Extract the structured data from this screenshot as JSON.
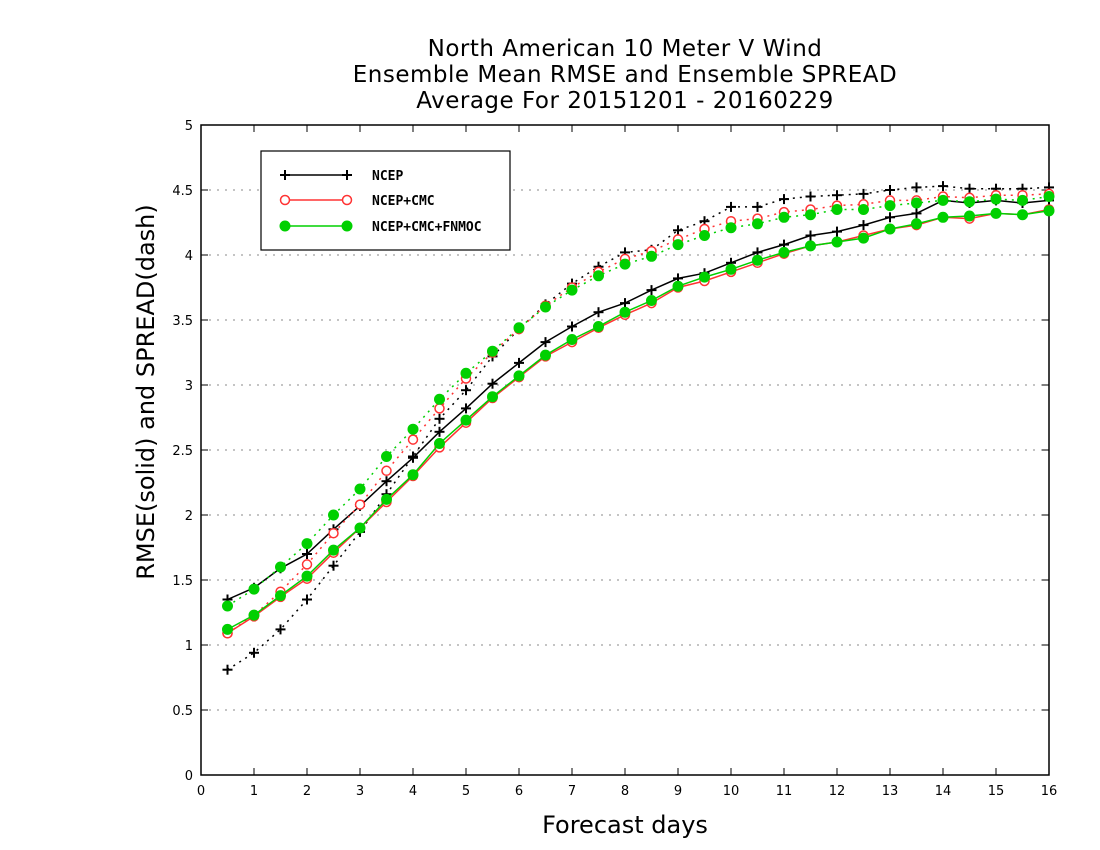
{
  "chart_data": {
    "type": "line",
    "title": [
      "North American 10 Meter V Wind",
      "Ensemble Mean RMSE and Ensemble SPREAD",
      "Average For 20151201 - 20160229"
    ],
    "xlabel": "Forecast days",
    "ylabel": "RMSE(solid) and SPREAD(dash)",
    "xlim": [
      0,
      16
    ],
    "ylim": [
      0,
      5
    ],
    "xticks": [
      "0",
      "1",
      "2",
      "3",
      "4",
      "5",
      "6",
      "7",
      "8",
      "9",
      "10",
      "11",
      "12",
      "13",
      "14",
      "15",
      "16"
    ],
    "yticks": [
      "0",
      "0.5",
      "1",
      "1.5",
      "2",
      "2.5",
      "3",
      "3.5",
      "4",
      "4.5",
      "5"
    ],
    "grid": "horizontal dotted",
    "legend_position": "top-left",
    "x": [
      0.5,
      1.0,
      1.5,
      2.0,
      2.5,
      3.0,
      3.5,
      4.0,
      4.5,
      5.0,
      5.5,
      6.0,
      6.5,
      7.0,
      7.5,
      8.0,
      8.5,
      9.0,
      9.5,
      10.0,
      10.5,
      11.0,
      11.5,
      12.0,
      12.5,
      13.0,
      13.5,
      14.0,
      14.5,
      15.0,
      15.5,
      16.0
    ],
    "series": [
      {
        "name": "NCEP",
        "color": "#000000",
        "marker": "plus",
        "rmse": [
          1.35,
          1.44,
          1.59,
          1.7,
          1.89,
          2.07,
          2.26,
          2.44,
          2.64,
          2.82,
          3.01,
          3.17,
          3.33,
          3.45,
          3.56,
          3.63,
          3.73,
          3.82,
          3.86,
          3.94,
          4.02,
          4.08,
          4.15,
          4.18,
          4.23,
          4.29,
          4.32,
          4.42,
          4.4,
          4.42,
          4.4,
          4.42
        ],
        "spread": [
          0.81,
          0.94,
          1.12,
          1.35,
          1.61,
          1.87,
          2.16,
          2.45,
          2.74,
          2.96,
          3.22,
          3.43,
          3.62,
          3.78,
          3.91,
          4.02,
          4.04,
          4.19,
          4.26,
          4.37,
          4.37,
          4.43,
          4.45,
          4.46,
          4.47,
          4.5,
          4.52,
          4.53,
          4.51,
          4.51,
          4.51,
          4.52
        ]
      },
      {
        "name": "NCEP+CMC",
        "color": "#ff3333",
        "marker": "open-circle",
        "rmse": [
          1.09,
          1.22,
          1.37,
          1.51,
          1.71,
          1.9,
          2.1,
          2.3,
          2.52,
          2.71,
          2.9,
          3.06,
          3.22,
          3.33,
          3.44,
          3.54,
          3.63,
          3.75,
          3.8,
          3.87,
          3.94,
          4.01,
          4.07,
          4.1,
          4.15,
          4.2,
          4.23,
          4.29,
          4.28,
          4.32,
          4.31,
          4.35
        ],
        "spread": [
          1.09,
          1.23,
          1.41,
          1.62,
          1.86,
          2.08,
          2.34,
          2.58,
          2.82,
          3.05,
          3.25,
          3.43,
          3.61,
          3.75,
          3.87,
          3.97,
          4.03,
          4.12,
          4.2,
          4.26,
          4.28,
          4.33,
          4.35,
          4.38,
          4.39,
          4.42,
          4.42,
          4.45,
          4.44,
          4.46,
          4.46,
          4.47
        ]
      },
      {
        "name": "NCEP+CMC+FNMOC",
        "color": "#00d000",
        "marker": "filled-circle",
        "rmse": [
          1.12,
          1.23,
          1.38,
          1.53,
          1.73,
          1.9,
          2.12,
          2.31,
          2.55,
          2.73,
          2.91,
          3.07,
          3.23,
          3.35,
          3.45,
          3.56,
          3.65,
          3.76,
          3.83,
          3.89,
          3.96,
          4.02,
          4.07,
          4.1,
          4.13,
          4.2,
          4.24,
          4.29,
          4.3,
          4.32,
          4.31,
          4.34
        ],
        "spread": [
          1.3,
          1.43,
          1.6,
          1.78,
          2.0,
          2.2,
          2.45,
          2.66,
          2.89,
          3.09,
          3.26,
          3.44,
          3.6,
          3.73,
          3.84,
          3.93,
          3.99,
          4.08,
          4.15,
          4.21,
          4.24,
          4.29,
          4.31,
          4.35,
          4.35,
          4.38,
          4.4,
          4.42,
          4.41,
          4.43,
          4.42,
          4.45
        ]
      }
    ]
  }
}
